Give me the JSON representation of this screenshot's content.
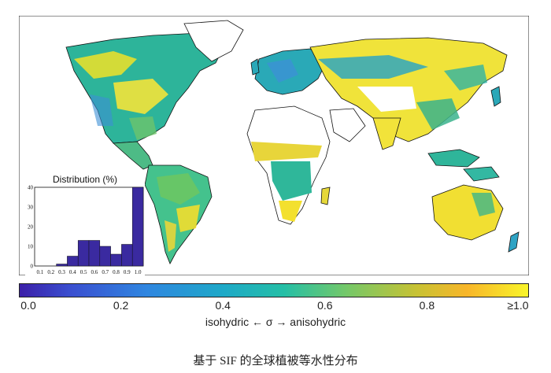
{
  "hist": {
    "title": "Distribution (%)",
    "ylim": [
      0,
      40
    ],
    "yticks": [
      "0",
      "10",
      "20",
      "30",
      "40"
    ],
    "xticks": [
      "0.1",
      "0.2",
      "0.3",
      "0.4",
      "0.5",
      "0.6",
      "0.7",
      "0.8",
      "0.9",
      "1.0"
    ],
    "values": [
      0,
      0,
      1,
      5,
      13,
      13,
      10,
      6,
      11,
      40
    ],
    "bar_color": "#3a2aa0"
  },
  "colorbar": {
    "ticks": [
      "0.0",
      "0.2",
      "0.4",
      "0.6",
      "0.8",
      "≥1.0"
    ],
    "tick_values": [
      0.0,
      0.2,
      0.4,
      0.6,
      0.8,
      1.0
    ],
    "label": "isohydric ← σ → anisohydric",
    "colors": [
      "#3b1fa8",
      "#2f86e0",
      "#25bfa6",
      "#c7c234",
      "#f9f52a"
    ]
  },
  "caption": "基于 SIF 的全球植被等水性分布",
  "chart_data": {
    "type": "bar",
    "title": "Distribution (%)",
    "categories": [
      "0.1",
      "0.2",
      "0.3",
      "0.4",
      "0.5",
      "0.6",
      "0.7",
      "0.8",
      "0.9",
      "1.0"
    ],
    "values": [
      0,
      0,
      1,
      5,
      13,
      13,
      10,
      6,
      11,
      40
    ],
    "xlabel": "",
    "ylabel": "",
    "ylim": [
      0,
      40
    ]
  }
}
